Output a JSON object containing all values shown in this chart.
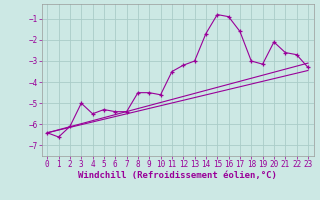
{
  "background_color": "#cce8e4",
  "grid_color": "#aaccc8",
  "line_color": "#990099",
  "xlim": [
    -0.5,
    23.5
  ],
  "ylim": [
    -7.5,
    -0.3
  ],
  "yticks": [
    -7,
    -6,
    -5,
    -4,
    -3,
    -2,
    -1
  ],
  "xticks": [
    0,
    1,
    2,
    3,
    4,
    5,
    6,
    7,
    8,
    9,
    10,
    11,
    12,
    13,
    14,
    15,
    16,
    17,
    18,
    19,
    20,
    21,
    22,
    23
  ],
  "xlabel": "Windchill (Refroidissement éolien,°C)",
  "xlabel_fontsize": 6.5,
  "tick_fontsize": 5.5,
  "series": [
    [
      0,
      -6.4
    ],
    [
      1,
      -6.6
    ],
    [
      2,
      -6.1
    ],
    [
      3,
      -5.0
    ],
    [
      4,
      -5.5
    ],
    [
      5,
      -5.3
    ],
    [
      6,
      -5.4
    ],
    [
      7,
      -5.4
    ],
    [
      8,
      -4.5
    ],
    [
      9,
      -4.5
    ],
    [
      10,
      -4.6
    ],
    [
      11,
      -3.5
    ],
    [
      12,
      -3.2
    ],
    [
      13,
      -3.0
    ],
    [
      14,
      -1.7
    ],
    [
      15,
      -0.8
    ],
    [
      16,
      -0.9
    ],
    [
      17,
      -1.6
    ],
    [
      18,
      -3.0
    ],
    [
      19,
      -3.15
    ],
    [
      20,
      -2.1
    ],
    [
      21,
      -2.6
    ],
    [
      22,
      -2.7
    ],
    [
      23,
      -3.3
    ]
  ],
  "line2": [
    [
      0,
      -6.4
    ],
    [
      23,
      -3.1
    ]
  ],
  "line3": [
    [
      0,
      -6.4
    ],
    [
      23,
      -3.45
    ]
  ]
}
